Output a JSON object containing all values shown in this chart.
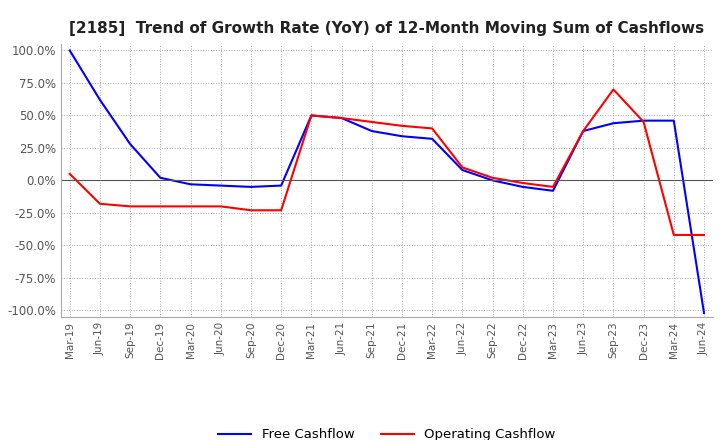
{
  "title": "[2185]  Trend of Growth Rate (YoY) of 12-Month Moving Sum of Cashflows",
  "title_fontsize": 11,
  "ylim": [
    -1.05,
    1.05
  ],
  "yticks": [
    1.0,
    0.75,
    0.5,
    0.25,
    0.0,
    -0.25,
    -0.5,
    -0.75,
    -1.0
  ],
  "ytick_labels": [
    "100.0%",
    "75.0%",
    "50.0%",
    "25.0%",
    "0.0%",
    "-25.0%",
    "-50.0%",
    "-75.0%",
    "-100.0%"
  ],
  "x_labels": [
    "Mar-19",
    "Jun-19",
    "Sep-19",
    "Dec-19",
    "Mar-20",
    "Jun-20",
    "Sep-20",
    "Dec-20",
    "Mar-21",
    "Jun-21",
    "Sep-21",
    "Dec-21",
    "Mar-22",
    "Jun-22",
    "Sep-22",
    "Dec-22",
    "Mar-23",
    "Jun-23",
    "Sep-23",
    "Dec-23",
    "Mar-24",
    "Jun-24"
  ],
  "operating_cashflow": [
    0.05,
    -0.18,
    -0.2,
    -0.2,
    -0.2,
    -0.2,
    -0.23,
    -0.23,
    0.5,
    0.48,
    0.45,
    0.42,
    0.4,
    0.1,
    0.02,
    -0.02,
    -0.05,
    0.38,
    0.7,
    0.45,
    -0.42,
    -0.42
  ],
  "free_cashflow": [
    1.0,
    0.62,
    0.28,
    0.02,
    -0.03,
    -0.04,
    -0.05,
    -0.04,
    0.5,
    0.48,
    0.38,
    0.34,
    0.32,
    0.08,
    0.0,
    -0.05,
    -0.08,
    0.38,
    0.44,
    0.46,
    0.46,
    -1.02
  ],
  "operating_color": "#ff0000",
  "free_color": "#0000ff",
  "background_color": "#ffffff",
  "grid_color": "#aaaaaa",
  "legend_labels": [
    "Operating Cashflow",
    "Free Cashflow"
  ]
}
